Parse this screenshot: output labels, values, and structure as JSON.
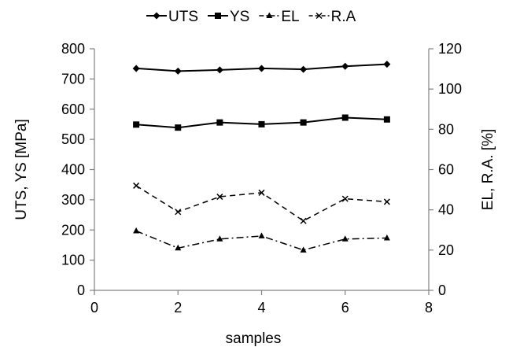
{
  "chart_data": {
    "type": "line",
    "title": "",
    "xlabel": "samples",
    "ylabel": "UTS, YS  [MPa]",
    "y2label": "EL, R.A. [%]",
    "xlim": [
      0,
      8
    ],
    "ylim": [
      0,
      800
    ],
    "y2lim": [
      0,
      120
    ],
    "xticks": [
      "0",
      "2",
      "4",
      "6",
      "8"
    ],
    "yticks": [
      "0",
      "100",
      "200",
      "300",
      "400",
      "500",
      "600",
      "700",
      "800"
    ],
    "y2ticks": [
      "0",
      "20",
      "40",
      "60",
      "80",
      "100",
      "120"
    ],
    "grid": false,
    "legend_position": "top-center",
    "x": [
      1,
      2,
      3,
      4,
      5,
      6,
      7
    ],
    "series": [
      {
        "name": "UTS",
        "axis": "left",
        "marker": "diamond",
        "dash": "solid",
        "values": [
          735,
          726,
          730,
          735,
          732,
          742,
          749
        ]
      },
      {
        "name": "YS",
        "axis": "left",
        "marker": "square",
        "dash": "solid",
        "values": [
          549,
          539,
          556,
          550,
          556,
          572,
          566
        ]
      },
      {
        "name": "EL",
        "axis": "right",
        "marker": "triangle",
        "dash": "dashdot",
        "values": [
          29.5,
          21,
          25.5,
          27,
          20,
          25.5,
          26
        ]
      },
      {
        "name": "R.A",
        "axis": "right",
        "marker": "x",
        "dash": "dashed",
        "values": [
          52,
          39,
          46.5,
          48.5,
          34.5,
          45.5,
          44
        ]
      }
    ],
    "colors": {
      "line": "#000000",
      "axis": "#808080"
    }
  }
}
